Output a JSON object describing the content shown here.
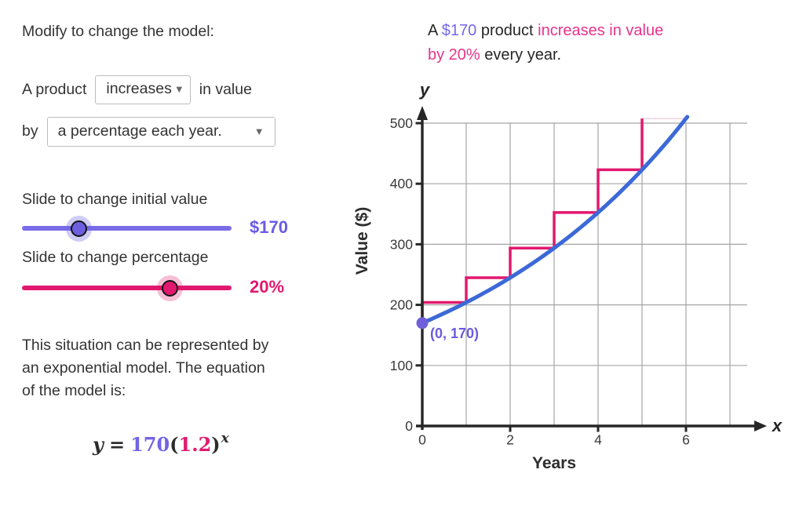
{
  "colors": {
    "purple_accent": "#7164e4",
    "pink_accent": "#e2186e",
    "blue_curve": "#3c69d7",
    "grid_gray": "#a5a5a5",
    "axis_black": "#262626"
  },
  "left": {
    "title": "Modify to change the model:",
    "builder": {
      "prefix": "A product",
      "direction_value": "increases",
      "suffix": "in value",
      "by": "by",
      "type_value": "a percentage each year."
    },
    "initial_slider": {
      "label": "Slide to change initial value",
      "value": "$170"
    },
    "percent_slider": {
      "label": "Slide to change percentage",
      "value": "20%"
    },
    "description_lines": [
      "This situation can be represented by",
      "an exponential model. The equation",
      "of the model is:"
    ],
    "equation": {
      "lhs": "y",
      "equals": "=",
      "coefficient": "170",
      "open_paren": "(",
      "base": "1.2",
      "close_paren": ")",
      "exponent": "x"
    }
  },
  "right": {
    "line1": [
      {
        "text": "A "
      },
      {
        "text": "$170"
      },
      {
        "text": " product "
      },
      {
        "text": "increases in value"
      }
    ],
    "line2": [
      {
        "text": "by 20%"
      },
      {
        "text": " every year."
      }
    ]
  },
  "icons": {
    "dropdown_arrow": "▼"
  },
  "chart_data": {
    "type": "line",
    "xlabel": "Years",
    "ylabel": "Value ($)",
    "x_axis_symbol": "x",
    "y_axis_symbol": "y",
    "xlim": [
      0,
      7.4
    ],
    "ylim": [
      0,
      520
    ],
    "grid": true,
    "x_ticks": [
      0,
      2,
      4,
      6
    ],
    "y_ticks": [
      0,
      100,
      200,
      300,
      400,
      500
    ],
    "x_gridlines": [
      1,
      2,
      3,
      4,
      5,
      6,
      7
    ],
    "y_gridlines": [
      100,
      200,
      300,
      400,
      500
    ],
    "series": [
      {
        "name": "exponential model curve",
        "formula": "y = 170(1.2)^x",
        "initial_value": 170,
        "growth_rate": 1.2,
        "x_range": [
          0,
          6.03
        ],
        "color": "#3c69d7"
      },
      {
        "name": "yearly step increases",
        "render": "staircase",
        "step_values": [
          170,
          204,
          244.8,
          293.76,
          352.51,
          423.01,
          507.62
        ],
        "color": "#e2186e",
        "faint_top_color": "#f2c6db"
      }
    ],
    "point": {
      "x": 0,
      "y": 170,
      "label": "(0, 170)",
      "color": "#6f5fd9",
      "label_color": "#6b5bdf"
    }
  }
}
